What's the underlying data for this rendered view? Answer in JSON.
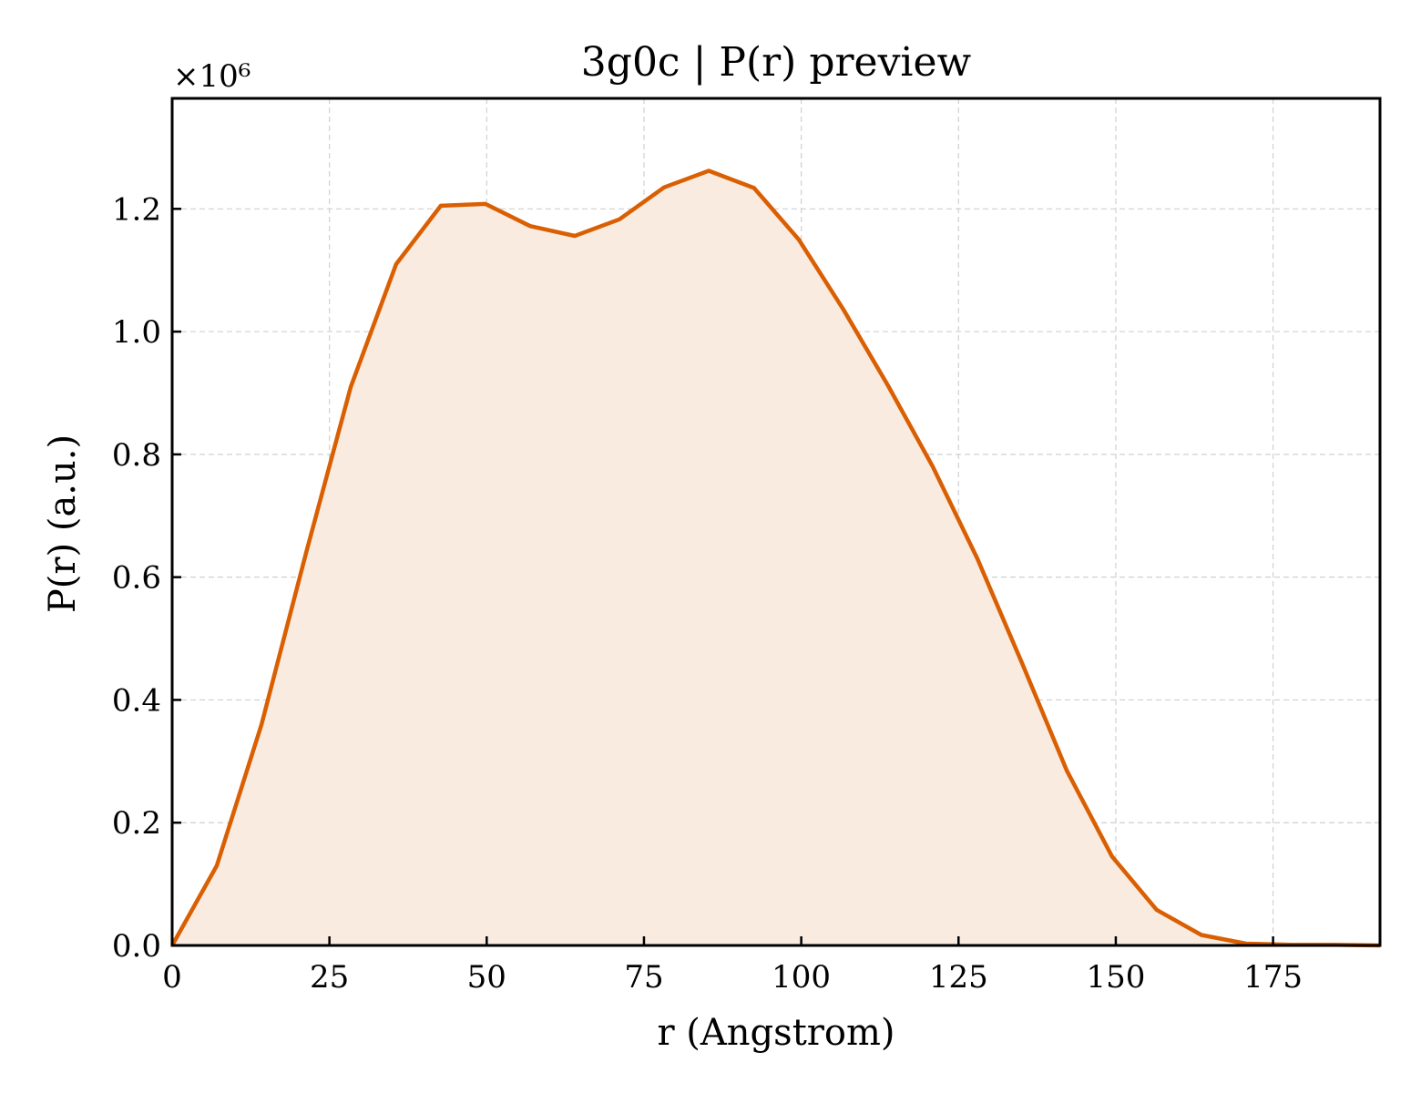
{
  "chart_data": {
    "type": "area",
    "title": "3g0c | P(r) preview",
    "xlabel": "r (Angstrom)",
    "ylabel": "P(r) (a.u.)",
    "y_multiplier": "×10⁶",
    "xlim": [
      0,
      192
    ],
    "ylim": [
      0,
      1.38
    ],
    "xticks": [
      0,
      25,
      50,
      75,
      100,
      125,
      150,
      175
    ],
    "xtick_labels": [
      "0",
      "25",
      "50",
      "75",
      "100",
      "125",
      "150",
      "175"
    ],
    "yticks": [
      0.0,
      0.2,
      0.4,
      0.6,
      0.8,
      1.0,
      1.2
    ],
    "ytick_labels": [
      "0.0",
      "0.2",
      "0.4",
      "0.6",
      "0.8",
      "1.0",
      "1.2"
    ],
    "grid": true,
    "line_color": "#d95f02",
    "fill_color": "#f9ebe0",
    "series": [
      {
        "x": [
          0,
          7.1,
          14.2,
          21.3,
          28.4,
          35.6,
          42.7,
          49.8,
          56.9,
          64.0,
          71.1,
          78.2,
          85.3,
          92.5,
          99.6,
          106.7,
          113.8,
          120.9,
          128.0,
          135.1,
          142.2,
          149.4,
          156.5,
          163.6,
          170.7,
          177.8,
          184.9,
          192.0
        ],
        "values": [
          0.0,
          0.13,
          0.36,
          0.64,
          0.91,
          1.11,
          1.205,
          1.208,
          1.172,
          1.156,
          1.183,
          1.235,
          1.262,
          1.234,
          1.15,
          1.036,
          0.912,
          0.78,
          0.63,
          0.46,
          0.285,
          0.145,
          0.058,
          0.017,
          0.003,
          0.001,
          0.001,
          0.0
        ]
      }
    ]
  }
}
